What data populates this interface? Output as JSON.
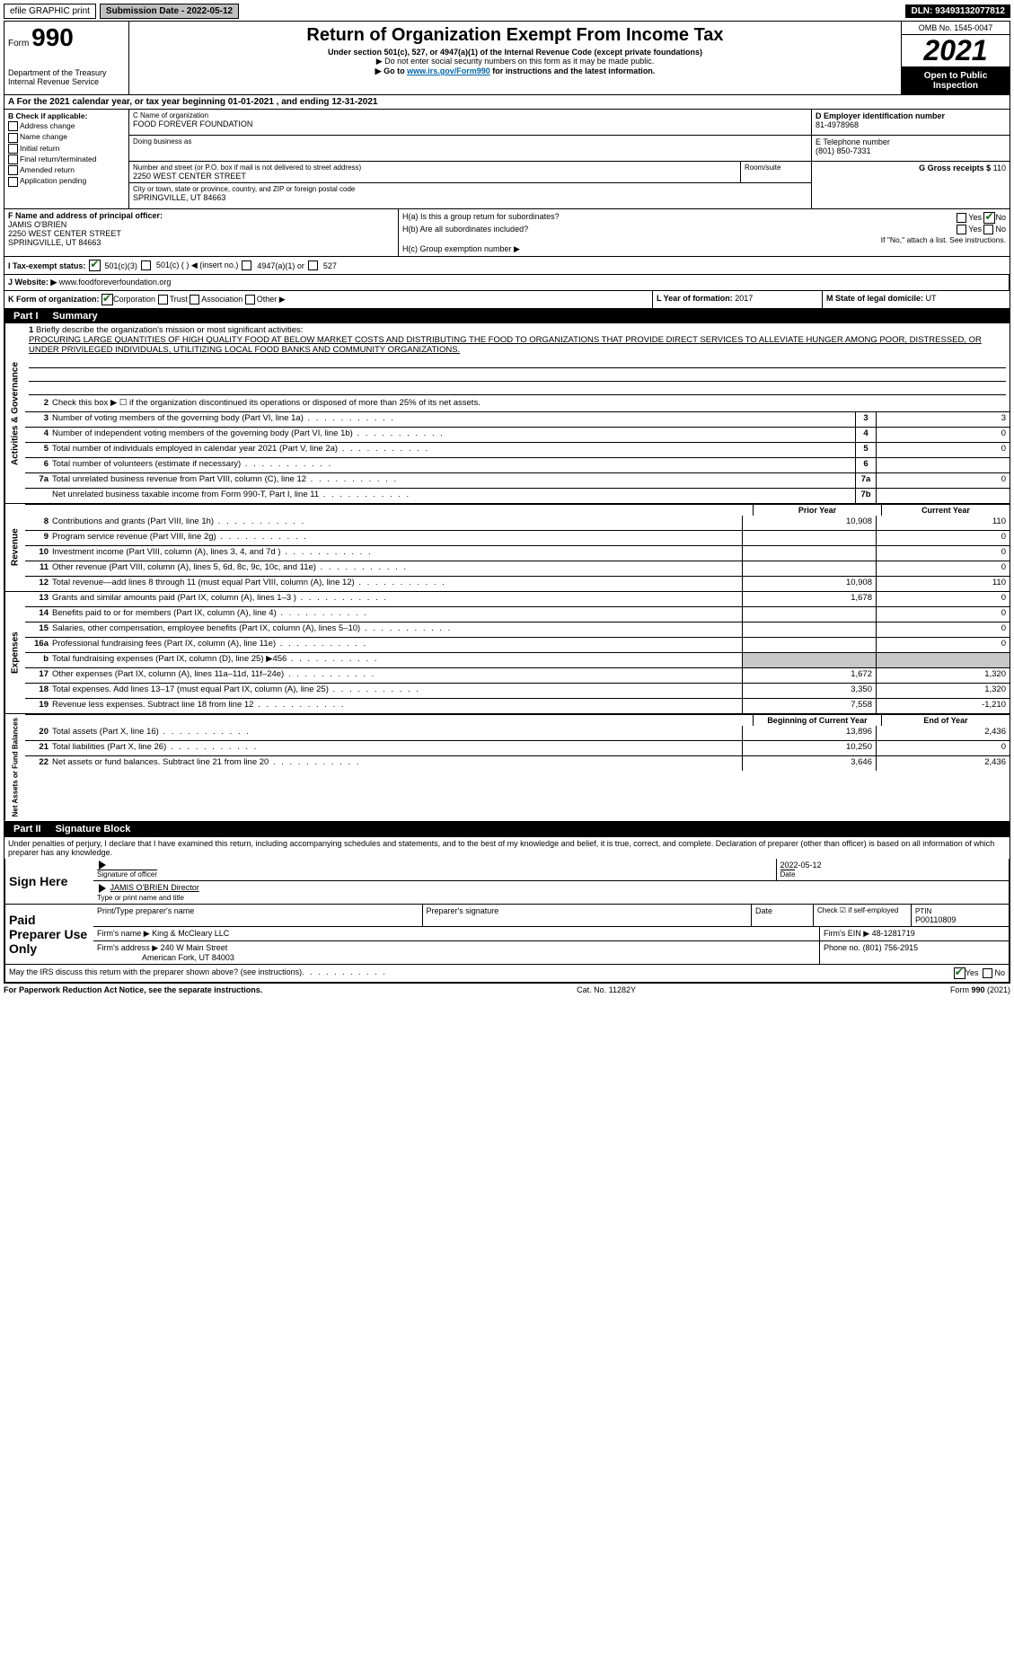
{
  "topbar": {
    "efile": "efile GRAPHIC print",
    "submission": "Submission Date - 2022-05-12",
    "dln": "DLN: 93493132077812"
  },
  "header": {
    "form_label": "Form",
    "form_num": "990",
    "dept": "Department of the Treasury",
    "irs": "Internal Revenue Service",
    "title": "Return of Organization Exempt From Income Tax",
    "sub1": "Under section 501(c), 527, or 4947(a)(1) of the Internal Revenue Code (except private foundations)",
    "sub2": "▶ Do not enter social security numbers on this form as it may be made public.",
    "sub3_pre": "▶ Go to ",
    "sub3_link": "www.irs.gov/Form990",
    "sub3_post": " for instructions and the latest information.",
    "omb": "OMB No. 1545-0047",
    "year": "2021",
    "open": "Open to Public Inspection"
  },
  "rowA": {
    "text": "A For the 2021 calendar year, or tax year beginning 01-01-2021     , and ending 12-31-2021"
  },
  "colB": {
    "title": "B Check if applicable:",
    "items": [
      "Address change",
      "Name change",
      "Initial return",
      "Final return/terminated",
      "Amended return",
      "Application pending"
    ]
  },
  "colC": {
    "name_label": "C Name of organization",
    "name": "FOOD FOREVER FOUNDATION",
    "dba_label": "Doing business as",
    "dba": "",
    "street_label": "Number and street (or P.O. box if mail is not delivered to street address)",
    "room_label": "Room/suite",
    "street": "2250 WEST CENTER STREET",
    "city_label": "City or town, state or province, country, and ZIP or foreign postal code",
    "city": "SPRINGVILLE, UT  84663"
  },
  "colDE": {
    "d_label": "D Employer identification number",
    "ein": "81-4978968",
    "e_label": "E Telephone number",
    "phone": "(801) 850-7331",
    "g_label": "G Gross receipts $",
    "g_val": "110"
  },
  "rowF": {
    "label": "F  Name and address of principal officer:",
    "name": "JAMIS O'BRIEN",
    "addr1": "2250 WEST CENTER STREET",
    "addr2": "SPRINGVILLE, UT  84663"
  },
  "rowH": {
    "a": "H(a)  Is this a group return for subordinates?",
    "b": "H(b)  Are all subordinates included?",
    "note": "If \"No,\" attach a list. See instructions.",
    "c": "H(c)  Group exemption number ▶",
    "yes": "Yes",
    "no": "No"
  },
  "rowI": {
    "label": "I  Tax-exempt status:",
    "o1": "501(c)(3)",
    "o2": "501(c) (  ) ◀ (insert no.)",
    "o3": "4947(a)(1) or",
    "o4": "527"
  },
  "rowJ": {
    "label": "J  Website: ▶",
    "val": "www.foodforeverfoundation.org"
  },
  "rowK": {
    "label": "K Form of organization:",
    "o1": "Corporation",
    "o2": "Trust",
    "o3": "Association",
    "o4": "Other ▶"
  },
  "rowL": {
    "label": "L Year of formation:",
    "val": "2017"
  },
  "rowM": {
    "label": "M State of legal domicile:",
    "val": "UT"
  },
  "part1": {
    "label": "Part I",
    "title": "Summary"
  },
  "mission": {
    "num": "1",
    "label": "Briefly describe the organization's mission or most significant activities:",
    "text": "PROCURING LARGE QUANTITIES OF HIGH QUALITY FOOD AT BELOW MARKET COSTS AND DISTRIBUTING THE FOOD TO ORGANIZATIONS THAT PROVIDE DIRECT SERVICES TO ALLEVIATE HUNGER AMONG POOR, DISTRESSED, OR UNDER PRIVILEGED INDIVIDUALS, UTILITIZING LOCAL FOOD BANKS AND COMMUNITY ORGANIZATIONS."
  },
  "lines_ag": [
    {
      "n": "2",
      "d": "Check this box ▶ ☐  if the organization discontinued its operations or disposed of more than 25% of its net assets."
    },
    {
      "n": "3",
      "d": "Number of voting members of the governing body (Part VI, line 1a)",
      "box": "3",
      "v": "3"
    },
    {
      "n": "4",
      "d": "Number of independent voting members of the governing body (Part VI, line 1b)",
      "box": "4",
      "v": "0"
    },
    {
      "n": "5",
      "d": "Total number of individuals employed in calendar year 2021 (Part V, line 2a)",
      "box": "5",
      "v": "0"
    },
    {
      "n": "6",
      "d": "Total number of volunteers (estimate if necessary)",
      "box": "6",
      "v": ""
    },
    {
      "n": "7a",
      "d": "Total unrelated business revenue from Part VIII, column (C), line 12",
      "box": "7a",
      "v": "0"
    },
    {
      "n": "",
      "d": "Net unrelated business taxable income from Form 990-T, Part I, line 11",
      "box": "7b",
      "v": ""
    }
  ],
  "year_hdr": {
    "py": "Prior Year",
    "cy": "Current Year"
  },
  "lines_rev": [
    {
      "n": "8",
      "d": "Contributions and grants (Part VIII, line 1h)",
      "py": "10,908",
      "cy": "110"
    },
    {
      "n": "9",
      "d": "Program service revenue (Part VIII, line 2g)",
      "py": "",
      "cy": "0"
    },
    {
      "n": "10",
      "d": "Investment income (Part VIII, column (A), lines 3, 4, and 7d )",
      "py": "",
      "cy": "0"
    },
    {
      "n": "11",
      "d": "Other revenue (Part VIII, column (A), lines 5, 6d, 8c, 9c, 10c, and 11e)",
      "py": "",
      "cy": "0"
    },
    {
      "n": "12",
      "d": "Total revenue—add lines 8 through 11 (must equal Part VIII, column (A), line 12)",
      "py": "10,908",
      "cy": "110"
    }
  ],
  "lines_exp": [
    {
      "n": "13",
      "d": "Grants and similar amounts paid (Part IX, column (A), lines 1–3 )",
      "py": "1,678",
      "cy": "0"
    },
    {
      "n": "14",
      "d": "Benefits paid to or for members (Part IX, column (A), line 4)",
      "py": "",
      "cy": "0"
    },
    {
      "n": "15",
      "d": "Salaries, other compensation, employee benefits (Part IX, column (A), lines 5–10)",
      "py": "",
      "cy": "0"
    },
    {
      "n": "16a",
      "d": "Professional fundraising fees (Part IX, column (A), line 11e)",
      "py": "",
      "cy": "0"
    },
    {
      "n": "b",
      "d": "Total fundraising expenses (Part IX, column (D), line 25) ▶456",
      "py": "shaded",
      "cy": "shaded"
    },
    {
      "n": "17",
      "d": "Other expenses (Part IX, column (A), lines 11a–11d, 11f–24e)",
      "py": "1,672",
      "cy": "1,320"
    },
    {
      "n": "18",
      "d": "Total expenses. Add lines 13–17 (must equal Part IX, column (A), line 25)",
      "py": "3,350",
      "cy": "1,320"
    },
    {
      "n": "19",
      "d": "Revenue less expenses. Subtract line 18 from line 12",
      "py": "7,558",
      "cy": "-1,210"
    }
  ],
  "year_hdr2": {
    "py": "Beginning of Current Year",
    "cy": "End of Year"
  },
  "lines_na": [
    {
      "n": "20",
      "d": "Total assets (Part X, line 16)",
      "py": "13,896",
      "cy": "2,436"
    },
    {
      "n": "21",
      "d": "Total liabilities (Part X, line 26)",
      "py": "10,250",
      "cy": "0"
    },
    {
      "n": "22",
      "d": "Net assets or fund balances. Subtract line 21 from line 20",
      "py": "3,646",
      "cy": "2,436"
    }
  ],
  "vtabs": {
    "ag": "Activities & Governance",
    "rev": "Revenue",
    "exp": "Expenses",
    "na": "Net Assets or Fund Balances"
  },
  "part2": {
    "label": "Part II",
    "title": "Signature Block"
  },
  "perjury": "Under penalties of perjury, I declare that I have examined this return, including accompanying schedules and statements, and to the best of my knowledge and belief, it is true, correct, and complete. Declaration of preparer (other than officer) is based on all information of which preparer has any knowledge.",
  "sign": {
    "label": "Sign Here",
    "sig_label": "Signature of officer",
    "date_label": "Date",
    "date": "2022-05-12",
    "name": "JAMIS O'BRIEN  Director",
    "name_label": "Type or print name and title"
  },
  "paid": {
    "label": "Paid Preparer Use Only",
    "pn_label": "Print/Type preparer's name",
    "ps_label": "Preparer's signature",
    "d_label": "Date",
    "chk_label": "Check ☑ if self-employed",
    "ptin_label": "PTIN",
    "ptin": "P00110809",
    "firm_label": "Firm's name   ▶",
    "firm": "King & McCleary LLC",
    "ein_label": "Firm's EIN ▶",
    "ein": "48-1281719",
    "addr_label": "Firm's address ▶",
    "addr1": "240 W Main Street",
    "addr2": "American Fork, UT  84003",
    "phone_label": "Phone no.",
    "phone": "(801) 756-2915"
  },
  "discuss": {
    "q": "May the IRS discuss this return with the preparer shown above? (see instructions)",
    "yes": "Yes",
    "no": "No"
  },
  "footer": {
    "left": "For Paperwork Reduction Act Notice, see the separate instructions.",
    "mid": "Cat. No. 11282Y",
    "right": "Form 990 (2021)"
  }
}
